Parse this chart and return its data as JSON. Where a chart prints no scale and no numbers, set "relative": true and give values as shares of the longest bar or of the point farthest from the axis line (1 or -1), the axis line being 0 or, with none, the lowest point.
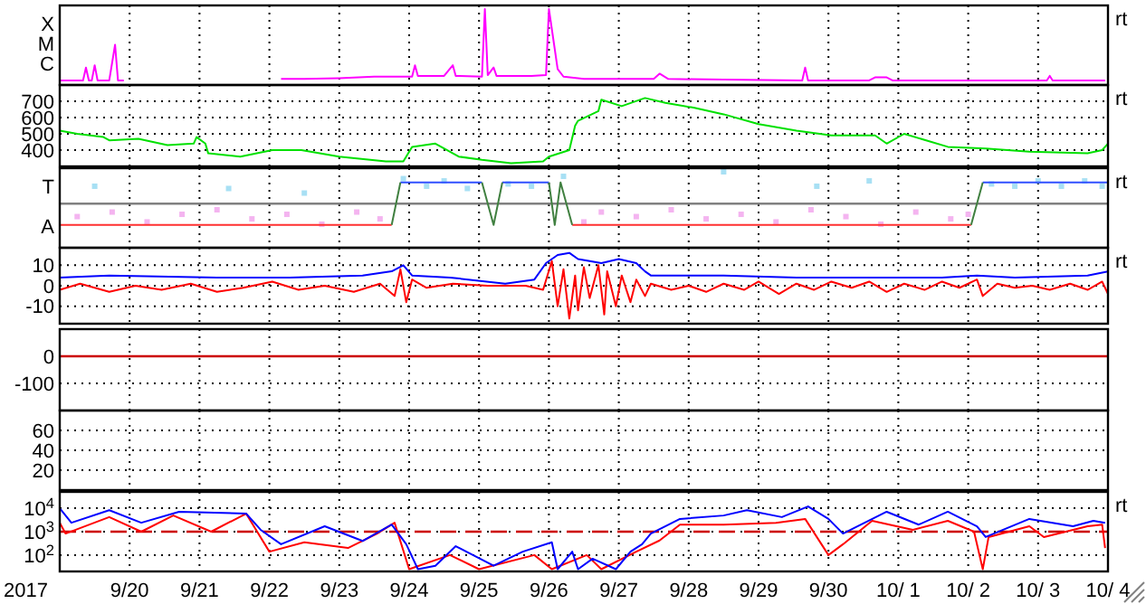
{
  "chart_data": [
    {
      "type": "line",
      "relative": true,
      "xlim": [
        "2017-09-19",
        "2017-10-04"
      ],
      "xticks": [
        {
          "value": "2017-09-20",
          "label": null
        },
        {
          "value": "2017-09-21",
          "label": null
        },
        {
          "value": "2017-09-22",
          "label": null
        },
        {
          "value": "2017-09-23",
          "label": null
        },
        {
          "value": "2017-09-24",
          "label": null
        },
        {
          "value": "2017-09-25",
          "label": null
        },
        {
          "value": "2017-09-26",
          "label": null
        },
        {
          "value": "2017-09-27",
          "label": null
        },
        {
          "value": "2017-09-28",
          "label": null
        },
        {
          "value": "2017-09-29",
          "label": null
        },
        {
          "value": "2017-09-30",
          "label": null
        },
        {
          "value": "2017-10-01",
          "label": null
        },
        {
          "value": "2017-10-02",
          "label": null
        },
        {
          "value": "2017-10-03",
          "label": null
        },
        {
          "value": "2017-10-04",
          "label": null
        }
      ],
      "grid": "x",
      "tick_labels": "y",
      "annotations": [
        "rt",
        "X",
        "M",
        "C"
      ],
      "series": [
        {
          "color": "#ff00ff",
          "x": [
            "2017-09-19T00:00",
            "2017-09-19T08:00",
            "2017-09-19T09:00",
            "2017-09-19T10:00",
            "2017-09-19T11:00",
            "2017-09-19T12:00",
            "2017-09-19T13:00",
            "2017-09-19T17:00",
            "2017-09-19T19:00",
            "2017-09-19T20:00",
            "2017-09-19T22:00",
            "2017-09-21T00:00",
            "2017-09-22T04:00",
            "2017-09-22T12:00",
            "2017-09-23T00:00",
            "2017-09-23T12:00",
            "2017-09-24T01:00",
            "2017-09-24T02:00",
            "2017-09-24T03:00",
            "2017-09-24T12:00",
            "2017-09-24T15:00",
            "2017-09-24T16:00",
            "2017-09-25T01:00",
            "2017-09-25T02:00",
            "2017-09-25T03:00",
            "2017-09-25T05:00",
            "2017-09-25T06:00",
            "2017-09-25T18:00",
            "2017-09-25T23:00",
            "2017-09-26T00:00",
            "2017-09-26T03:00",
            "2017-09-26T05:00",
            "2017-09-26T12:00",
            "2017-09-27T00:00",
            "2017-09-27T12:00",
            "2017-09-27T14:00",
            "2017-09-27T17:00",
            "2017-09-28T12:00",
            "2017-09-29T15:00",
            "2017-09-29T16:00",
            "2017-09-29T17:00",
            "2017-09-30T14:00",
            "2017-09-30T16:00",
            "2017-09-30T20:00",
            "2017-09-30T22:00",
            "2017-10-01T12:00",
            "2017-10-02T12:00",
            "2017-10-03T03:00",
            "2017-10-03T04:00",
            "2017-10-03T05:00",
            "2017-10-03T23:00"
          ],
          "values": [
            0.06,
            0.06,
            0.23,
            0.06,
            0.06,
            0.26,
            0.06,
            0.06,
            0.53,
            0.06,
            0.06,
            null,
            0.08,
            0.08,
            0.09,
            0.11,
            0.11,
            0.26,
            0.12,
            0.12,
            0.26,
            0.12,
            0.11,
            1,
            0.13,
            0.23,
            0.12,
            0.12,
            0.13,
            1,
            0.21,
            0.11,
            0.08,
            0.08,
            0.08,
            0.15,
            0.08,
            0.07,
            0.06,
            0.23,
            0.06,
            0.06,
            0.1,
            0.1,
            0.06,
            0.06,
            0.06,
            0.06,
            0.12,
            0.06,
            0.06
          ]
        }
      ]
    },
    {
      "type": "line",
      "xlim": [
        "2017-09-19",
        "2017-10-04"
      ],
      "xticks": [
        {
          "value": "2017-09-20",
          "label": null
        },
        {
          "value": "2017-09-21",
          "label": null
        },
        {
          "value": "2017-09-22",
          "label": null
        },
        {
          "value": "2017-09-23",
          "label": null
        },
        {
          "value": "2017-09-24",
          "label": null
        },
        {
          "value": "2017-09-25",
          "label": null
        },
        {
          "value": "2017-09-26",
          "label": null
        },
        {
          "value": "2017-09-27",
          "label": null
        },
        {
          "value": "2017-09-28",
          "label": null
        },
        {
          "value": "2017-09-29",
          "label": null
        },
        {
          "value": "2017-09-30",
          "label": null
        },
        {
          "value": "2017-10-01",
          "label": null
        },
        {
          "value": "2017-10-02",
          "label": null
        },
        {
          "value": "2017-10-03",
          "label": null
        },
        {
          "value": "2017-10-04",
          "label": null
        }
      ],
      "ylim": [
        300,
        800
      ],
      "yticks": [
        400,
        500,
        600,
        700
      ],
      "grid": true,
      "tick_labels": "y",
      "annotations": [
        "rt"
      ],
      "series": [
        {
          "color": "#00e000",
          "x": [
            "2017-09-19T00:00",
            "2017-09-19T06:00",
            "2017-09-19T15:00",
            "2017-09-19T17:00",
            "2017-09-20T03:00",
            "2017-09-20T13:00",
            "2017-09-20T22:00",
            "2017-09-20T23:00",
            "2017-09-21T02:00",
            "2017-09-21T03:00",
            "2017-09-21T14:00",
            "2017-09-22T01:00",
            "2017-09-22T11:00",
            "2017-09-23T00:00",
            "2017-09-23T16:00",
            "2017-09-23T22:00",
            "2017-09-24T01:00",
            "2017-09-24T09:00",
            "2017-09-24T17:00",
            "2017-09-25T01:00",
            "2017-09-25T11:00",
            "2017-09-25T22:00",
            "2017-09-26T00:00",
            "2017-09-26T07:00",
            "2017-09-26T09:00",
            "2017-09-26T10:00",
            "2017-09-26T17:00",
            "2017-09-26T18:00",
            "2017-09-27T01:00",
            "2017-09-27T09:00",
            "2017-09-27T16:00",
            "2017-09-28T02:00",
            "2017-09-28T12:00",
            "2017-09-29T00:00",
            "2017-09-29T13:00",
            "2017-09-30T01:00",
            "2017-09-30T16:00",
            "2017-09-30T20:00",
            "2017-10-01T02:00",
            "2017-10-01T17:00",
            "2017-10-02T06:00",
            "2017-10-02T21:00",
            "2017-10-03T17:00",
            "2017-10-03T22:00",
            "2017-10-04T00:00"
          ],
          "values": [
            520,
            500,
            480,
            460,
            470,
            430,
            440,
            480,
            440,
            380,
            360,
            400,
            400,
            360,
            330,
            330,
            420,
            440,
            360,
            340,
            320,
            330,
            360,
            400,
            550,
            580,
            640,
            710,
            670,
            720,
            690,
            660,
            620,
            560,
            520,
            490,
            490,
            440,
            500,
            420,
            410,
            390,
            380,
            400,
            440
          ]
        }
      ]
    },
    {
      "type": "line",
      "xlim": [
        "2017-09-19",
        "2017-10-04"
      ],
      "xticks": [
        {
          "value": "2017-09-20",
          "label": null
        },
        {
          "value": "2017-09-21",
          "label": null
        },
        {
          "value": "2017-09-22",
          "label": null
        },
        {
          "value": "2017-09-23",
          "label": null
        },
        {
          "value": "2017-09-24",
          "label": null
        },
        {
          "value": "2017-09-25",
          "label": null
        },
        {
          "value": "2017-09-26",
          "label": null
        },
        {
          "value": "2017-09-27",
          "label": null
        },
        {
          "value": "2017-09-28",
          "label": null
        },
        {
          "value": "2017-09-29",
          "label": null
        },
        {
          "value": "2017-09-30",
          "label": null
        },
        {
          "value": "2017-10-01",
          "label": null
        },
        {
          "value": "2017-10-02",
          "label": null
        },
        {
          "value": "2017-10-03",
          "label": null
        },
        {
          "value": "2017-10-04",
          "label": null
        }
      ],
      "relative": true,
      "grid": "x",
      "tick_labels": "y",
      "annotations": [
        "rt",
        "T",
        "A"
      ],
      "ref_lines": [
        {
          "axis": "y",
          "value": 0.58,
          "color": "#808080"
        }
      ],
      "series": [
        {
          "type": "scatter",
          "marker": "square",
          "color": "#f4b4f0",
          "x": [
            "2017-09-19T06:00",
            "2017-09-19T18:00",
            "2017-09-20T06:00",
            "2017-09-20T18:00",
            "2017-09-21T06:00",
            "2017-09-21T18:00",
            "2017-09-22T06:00",
            "2017-09-22T18:00",
            "2017-09-23T06:00",
            "2017-09-23T14:00",
            "2017-09-26T12:00",
            "2017-09-26T18:00",
            "2017-09-27T06:00",
            "2017-09-27T18:00",
            "2017-09-28T06:00",
            "2017-09-28T18:00",
            "2017-09-29T06:00",
            "2017-09-29T18:00",
            "2017-09-30T06:00",
            "2017-09-30T18:00",
            "2017-10-01T06:00",
            "2017-10-01T18:00",
            "2017-10-02T00:00"
          ],
          "values": [
            0.41,
            0.47,
            0.34,
            0.44,
            0.5,
            0.38,
            0.44,
            0.31,
            0.47,
            0.38,
            0.34,
            0.47,
            0.41,
            0.5,
            0.38,
            0.44,
            0.34,
            0.5,
            0.41,
            0.31,
            0.47,
            0.38,
            0.44
          ]
        },
        {
          "type": "scatter",
          "marker": "square",
          "color": "#a8e0f4",
          "x": [
            "2017-09-19T12:00",
            "2017-09-21T10:00",
            "2017-09-22T12:00",
            "2017-09-23T22:00",
            "2017-09-24T06:00",
            "2017-09-24T12:00",
            "2017-09-24T20:00",
            "2017-09-25T10:00",
            "2017-09-25T18:00",
            "2017-09-26T05:00",
            "2017-09-28T12:00",
            "2017-09-29T20:00",
            "2017-09-30T14:00",
            "2017-10-02T08:00",
            "2017-10-02T16:00",
            "2017-10-03T00:00",
            "2017-10-03T08:00",
            "2017-10-03T16:00",
            "2017-10-03T22:00"
          ],
          "values": [
            0.81,
            0.78,
            0.72,
            0.91,
            0.81,
            0.88,
            0.78,
            0.84,
            0.81,
            0.94,
            1,
            0.81,
            0.88,
            0.84,
            0.81,
            0.88,
            0.81,
            0.88,
            0.81
          ]
        },
        {
          "color": "#ff3030",
          "x": [
            "2017-09-19T00:00",
            "2017-09-23T18:00",
            "2017-09-23T19:00",
            "2017-09-26T08:00",
            "2017-10-02T01:00"
          ],
          "values": [
            0.3,
            0.3,
            null,
            0.3,
            0.3
          ]
        },
        {
          "color": "#3050ff",
          "x": [
            "2017-09-23T21:00",
            "2017-09-25T01:00",
            "2017-09-25T03:00",
            "2017-09-25T08:00",
            "2017-09-26T00:00",
            "2017-09-26T01:00",
            "2017-10-02T05:00",
            "2017-10-04T00:00"
          ],
          "values": [
            0.86,
            0.86,
            null,
            0.86,
            0.86,
            null,
            0.86,
            0.86
          ]
        },
        {
          "color": "#408040",
          "x": [
            "2017-09-23T18:00",
            "2017-09-23T21:00",
            "2017-09-23T22:00",
            "2017-09-25T01:00",
            "2017-09-25T05:00",
            "2017-09-25T08:00",
            "2017-09-25T09:00",
            "2017-09-26T00:00",
            "2017-09-26T02:00",
            "2017-09-26T04:00",
            "2017-09-26T08:00",
            "2017-09-26T09:00",
            "2017-10-02T01:00",
            "2017-10-02T05:00"
          ],
          "values": [
            0.3,
            0.86,
            null,
            0.86,
            0.3,
            0.86,
            null,
            0.86,
            0.3,
            0.86,
            0.3,
            null,
            0.3,
            0.86
          ]
        }
      ]
    },
    {
      "type": "line",
      "xlim": [
        "2017-09-19",
        "2017-10-04"
      ],
      "xticks": [
        {
          "value": "2017-09-20",
          "label": null
        },
        {
          "value": "2017-09-21",
          "label": null
        },
        {
          "value": "2017-09-22",
          "label": null
        },
        {
          "value": "2017-09-23",
          "label": null
        },
        {
          "value": "2017-09-24",
          "label": null
        },
        {
          "value": "2017-09-25",
          "label": null
        },
        {
          "value": "2017-09-26",
          "label": null
        },
        {
          "value": "2017-09-27",
          "label": null
        },
        {
          "value": "2017-09-28",
          "label": null
        },
        {
          "value": "2017-09-29",
          "label": null
        },
        {
          "value": "2017-09-30",
          "label": null
        },
        {
          "value": "2017-10-01",
          "label": null
        },
        {
          "value": "2017-10-02",
          "label": null
        },
        {
          "value": "2017-10-03",
          "label": null
        },
        {
          "value": "2017-10-04",
          "label": null
        }
      ],
      "ylim": [
        -18.5,
        18.5
      ],
      "yticks": [
        -10,
        0,
        10
      ],
      "grid": true,
      "tick_labels": "y",
      "annotations": [
        "rt"
      ],
      "series": [
        {
          "color": "#0000ff",
          "x": [
            "2017-09-19T00:00",
            "2017-09-19T17:00",
            "2017-09-21T06:00",
            "2017-09-22T07:00",
            "2017-09-23T08:00",
            "2017-09-23T18:00",
            "2017-09-23T22:00",
            "2017-09-24T01:00",
            "2017-09-24T14:00",
            "2017-09-25T09:00",
            "2017-09-25T19:00",
            "2017-09-25T23:00",
            "2017-09-26T03:00",
            "2017-09-26T07:00",
            "2017-09-26T10:00",
            "2017-09-26T18:00",
            "2017-09-27T00:00",
            "2017-09-27T06:00",
            "2017-09-27T09:00",
            "2017-09-27T11:00",
            "2017-09-28T12:00",
            "2017-09-29T13:00",
            "2017-09-30T14:00",
            "2017-10-01T15:00",
            "2017-10-02T03:00",
            "2017-10-02T16:00",
            "2017-10-03T17:00",
            "2017-10-04T00:00"
          ],
          "values": [
            4,
            5,
            4,
            4,
            5,
            7,
            10,
            5,
            4,
            1,
            3,
            11,
            15,
            16,
            13,
            11,
            13,
            11,
            7,
            5,
            5,
            4,
            4,
            4,
            5,
            4,
            5,
            7
          ]
        },
        {
          "color": "#ff0000",
          "x": [
            "2017-09-19T00:00",
            "2017-09-19T07:00",
            "2017-09-19T17:00",
            "2017-09-20T02:00",
            "2017-09-20T11:00",
            "2017-09-20T21:00",
            "2017-09-21T06:00",
            "2017-09-21T15:00",
            "2017-09-22T01:00",
            "2017-09-22T10:00",
            "2017-09-22T19:00",
            "2017-09-23T05:00",
            "2017-09-23T14:00",
            "2017-09-23T19:00",
            "2017-09-23T21:00",
            "2017-09-23T23:00",
            "2017-09-24T01:00",
            "2017-09-24T06:00",
            "2017-09-24T15:00",
            "2017-09-25T03:00",
            "2017-09-25T16:00",
            "2017-09-25T22:00",
            "2017-09-26T01:00",
            "2017-09-26T03:00",
            "2017-09-26T05:00",
            "2017-09-26T07:00",
            "2017-09-26T09:00",
            "2017-09-26T10:00",
            "2017-09-26T12:00",
            "2017-09-26T14:00",
            "2017-09-26T17:00",
            "2017-09-26T19:00",
            "2017-09-26T20:00",
            "2017-09-26T23:00",
            "2017-09-27T01:00",
            "2017-09-27T04:00",
            "2017-09-27T06:00",
            "2017-09-27T09:00",
            "2017-09-27T11:00",
            "2017-09-27T18:00",
            "2017-09-28T00:00",
            "2017-09-28T06:00",
            "2017-09-28T12:00",
            "2017-09-28T19:00",
            "2017-09-29T00:00",
            "2017-09-29T07:00",
            "2017-09-29T13:00",
            "2017-09-29T19:00",
            "2017-09-30T01:00",
            "2017-09-30T08:00",
            "2017-09-30T14:00",
            "2017-09-30T20:00",
            "2017-10-01T02:00",
            "2017-10-01T09:00",
            "2017-10-01T15:00",
            "2017-10-01T21:00",
            "2017-10-02T03:00",
            "2017-10-02T05:00",
            "2017-10-02T10:00",
            "2017-10-02T16:00",
            "2017-10-02T22:00",
            "2017-10-03T04:00",
            "2017-10-03T11:00",
            "2017-10-03T17:00",
            "2017-10-03T22:00",
            "2017-10-04T00:00"
          ],
          "values": [
            -2,
            1,
            -3,
            0,
            -2,
            1,
            -3,
            -1,
            2,
            -2,
            0,
            -3,
            1,
            -5,
            8,
            -8,
            3,
            -1,
            1,
            0,
            0,
            -2,
            12,
            -10,
            8,
            -16,
            5,
            -12,
            9,
            -6,
            10,
            -14,
            7,
            -10,
            5,
            -8,
            3,
            -5,
            1,
            -2,
            0,
            -3,
            1,
            -2,
            2,
            -4,
            1,
            -2,
            2,
            -1,
            2,
            -3,
            1,
            -2,
            2,
            -1,
            3,
            -5,
            1,
            -1,
            0,
            -2,
            1,
            -2,
            2,
            -4
          ]
        }
      ]
    },
    {
      "type": "line",
      "xlim": [
        "2017-09-19",
        "2017-10-04"
      ],
      "xticks": [
        {
          "value": "2017-09-20",
          "label": null
        },
        {
          "value": "2017-09-21",
          "label": null
        },
        {
          "value": "2017-09-22",
          "label": null
        },
        {
          "value": "2017-09-23",
          "label": null
        },
        {
          "value": "2017-09-24",
          "label": null
        },
        {
          "value": "2017-09-25",
          "label": null
        },
        {
          "value": "2017-09-26",
          "label": null
        },
        {
          "value": "2017-09-27",
          "label": null
        },
        {
          "value": "2017-09-28",
          "label": null
        },
        {
          "value": "2017-09-29",
          "label": null
        },
        {
          "value": "2017-09-30",
          "label": null
        },
        {
          "value": "2017-10-01",
          "label": null
        },
        {
          "value": "2017-10-02",
          "label": null
        },
        {
          "value": "2017-10-03",
          "label": null
        },
        {
          "value": "2017-10-04",
          "label": null
        }
      ],
      "ylim": [
        -200,
        100
      ],
      "yticks": [
        -100,
        0
      ],
      "grid": true,
      "tick_labels": "y",
      "ref_lines": [
        {
          "axis": "y",
          "value": 0,
          "color": "#cc0000"
        }
      ]
    },
    {
      "type": "line",
      "xlim": [
        "2017-09-19",
        "2017-10-04"
      ],
      "xticks": [
        {
          "value": "2017-09-20",
          "label": null
        },
        {
          "value": "2017-09-21",
          "label": null
        },
        {
          "value": "2017-09-22",
          "label": null
        },
        {
          "value": "2017-09-23",
          "label": null
        },
        {
          "value": "2017-09-24",
          "label": null
        },
        {
          "value": "2017-09-25",
          "label": null
        },
        {
          "value": "2017-09-26",
          "label": null
        },
        {
          "value": "2017-09-27",
          "label": null
        },
        {
          "value": "2017-09-28",
          "label": null
        },
        {
          "value": "2017-09-29",
          "label": null
        },
        {
          "value": "2017-09-30",
          "label": null
        },
        {
          "value": "2017-10-01",
          "label": null
        },
        {
          "value": "2017-10-02",
          "label": null
        },
        {
          "value": "2017-10-03",
          "label": null
        },
        {
          "value": "2017-10-04",
          "label": null
        }
      ],
      "ylim": [
        0,
        80
      ],
      "yticks": [
        20,
        40,
        60
      ],
      "grid": true,
      "tick_labels": "y"
    },
    {
      "type": "line",
      "log": "y",
      "xlabel": "2017",
      "xlim": [
        "2017-09-19",
        "2017-10-04"
      ],
      "xticks": [
        {
          "value": "2017-09-20",
          "label": "9/20"
        },
        {
          "value": "2017-09-21",
          "label": "9/21"
        },
        {
          "value": "2017-09-22",
          "label": "9/22"
        },
        {
          "value": "2017-09-23",
          "label": "9/23"
        },
        {
          "value": "2017-09-24",
          "label": "9/24"
        },
        {
          "value": "2017-09-25",
          "label": "9/25"
        },
        {
          "value": "2017-09-26",
          "label": "9/26"
        },
        {
          "value": "2017-09-27",
          "label": "9/27"
        },
        {
          "value": "2017-09-28",
          "label": "9/28"
        },
        {
          "value": "2017-09-29",
          "label": "9/29"
        },
        {
          "value": "2017-09-30",
          "label": "9/30"
        },
        {
          "value": "2017-10-01",
          "label": "10/ 1"
        },
        {
          "value": "2017-10-02",
          "label": "10/ 2"
        },
        {
          "value": "2017-10-03",
          "label": "10/ 3"
        },
        {
          "value": "2017-10-04",
          "label": "10/ 4"
        }
      ],
      "ylim": [
        20,
        50000
      ],
      "yticks": [
        {
          "value": 100,
          "label": "10$^{2}$"
        },
        {
          "value": 1000,
          "label": "10$^{3}$"
        },
        {
          "value": 10000,
          "label": "10$^{4}$"
        }
      ],
      "grid": true,
      "annotations": [
        "rt"
      ],
      "ref_lines": [
        {
          "axis": "y",
          "value": 1000,
          "color": "#cc0000",
          "line_style": "dashed"
        }
      ],
      "series": [
        {
          "color": "#ff0000",
          "x": [
            "2017-09-19T00:00",
            "2017-09-19T02:00",
            "2017-09-19T17:00",
            "2017-09-20T04:00",
            "2017-09-20T15:00",
            "2017-09-21T04:00",
            "2017-09-21T16:00",
            "2017-09-22T00:00",
            "2017-09-22T12:00",
            "2017-09-23T03:00",
            "2017-09-23T13:00",
            "2017-09-23T19:00",
            "2017-09-24T00:00",
            "2017-09-24T14:00",
            "2017-09-25T00:00",
            "2017-09-25T19:00",
            "2017-09-26T01:00",
            "2017-09-26T13:00",
            "2017-09-26T18:00",
            "2017-09-27T06:00",
            "2017-09-27T14:00",
            "2017-09-27T21:00",
            "2017-09-28T12:00",
            "2017-09-29T06:00",
            "2017-09-29T16:00",
            "2017-09-30T00:00",
            "2017-09-30T05:00",
            "2017-09-30T15:00",
            "2017-10-01T05:00",
            "2017-10-01T17:00",
            "2017-10-02T02:00",
            "2017-10-02T05:00",
            "2017-10-02T07:00",
            "2017-10-02T21:00",
            "2017-10-03T02:00",
            "2017-10-03T17:00",
            "2017-10-03T22:00",
            "2017-10-03T23:00"
          ],
          "values": [
            2400,
            830,
            4200,
            1000,
            4900,
            1000,
            5900,
            140,
            350,
            200,
            830,
            2400,
            25,
            100,
            25,
            100,
            25,
            100,
            25,
            140,
            420,
            2000,
            2000,
            2400,
            3500,
            100,
            290,
            2900,
            1200,
            2900,
            1000,
            25,
            590,
            1700,
            590,
            1700,
            2000,
            200
          ]
        },
        {
          "color": "#0000ff",
          "x": [
            "2017-09-19T00:00",
            "2017-09-19T04:00",
            "2017-09-19T17:00",
            "2017-09-20T04:00",
            "2017-09-20T17:00",
            "2017-09-21T16:00",
            "2017-09-21T21:00",
            "2017-09-22T04:00",
            "2017-09-22T19:00",
            "2017-09-23T08:00",
            "2017-09-23T18:00",
            "2017-09-23T23:00",
            "2017-09-24T03:00",
            "2017-09-24T09:00",
            "2017-09-24T16:00",
            "2017-09-25T05:00",
            "2017-09-25T15:00",
            "2017-09-26T01:00",
            "2017-09-26T03:00",
            "2017-09-26T08:00",
            "2017-09-26T10:00",
            "2017-09-26T15:00",
            "2017-09-26T23:00",
            "2017-09-27T04:00",
            "2017-09-27T08:00",
            "2017-09-27T11:00",
            "2017-09-27T21:00",
            "2017-09-28T12:00",
            "2017-09-28T20:00",
            "2017-09-29T08:00",
            "2017-09-29T17:00",
            "2017-09-30T00:00",
            "2017-09-30T05:00",
            "2017-09-30T20:00",
            "2017-10-01T07:00",
            "2017-10-01T17:00",
            "2017-10-02T03:00",
            "2017-10-02T06:00",
            "2017-10-02T21:00",
            "2017-10-03T12:00",
            "2017-10-03T19:00",
            "2017-10-03T23:00"
          ],
          "values": [
            10000,
            2400,
            8300,
            2400,
            7100,
            5900,
            1200,
            290,
            1700,
            400,
            2000,
            290,
            25,
            35,
            240,
            35,
            140,
            350,
            25,
            140,
            25,
            70,
            25,
            140,
            290,
            830,
            3500,
            4900,
            8300,
            4200,
            12000,
            3500,
            830,
            7100,
            2000,
            7100,
            1700,
            590,
            3500,
            1700,
            2900,
            2400
          ]
        }
      ]
    }
  ]
}
